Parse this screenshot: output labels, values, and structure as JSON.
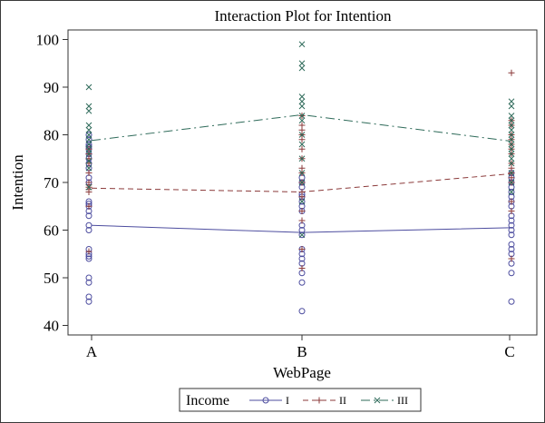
{
  "chart_data": {
    "type": "line",
    "title": "Interaction Plot for Intention",
    "xlabel": "WebPage",
    "ylabel": "Intention",
    "categories": [
      "A",
      "B",
      "C"
    ],
    "ylim": [
      38,
      102
    ],
    "yticks": [
      40,
      50,
      60,
      70,
      80,
      90,
      100
    ],
    "legend_title": "Income",
    "legend_position": "bottom",
    "series": [
      {
        "name": "I",
        "color": "#4d4d9f",
        "marker": "circle",
        "line_style": "solid",
        "means": [
          61,
          59.5,
          60.5
        ],
        "points": [
          [
            45,
            46,
            49,
            50,
            54,
            54.5,
            55,
            56,
            60,
            61,
            63,
            64,
            65,
            65.5,
            66,
            70,
            71,
            73,
            74,
            75,
            76,
            77,
            77.5,
            78,
            79,
            80
          ],
          [
            43,
            49,
            51,
            53,
            54,
            55,
            56,
            59,
            60,
            61,
            64,
            65,
            66,
            67,
            67.5,
            69,
            70,
            71
          ],
          [
            45,
            51,
            53,
            55,
            56,
            57,
            59,
            60,
            61,
            62,
            63,
            65,
            66,
            67,
            68,
            69,
            70,
            71,
            72
          ]
        ]
      },
      {
        "name": "II",
        "color": "#8b3a3a",
        "marker": "plus",
        "line_style": "dash",
        "means": [
          68.8,
          68,
          71.8
        ],
        "points": [
          [
            55.5,
            65,
            68,
            68.5,
            69,
            69.5,
            70,
            72,
            74,
            75,
            76,
            77
          ],
          [
            52,
            56,
            62,
            64,
            67,
            68,
            70,
            72,
            73,
            75,
            77,
            79,
            80,
            81,
            82,
            84
          ],
          [
            54,
            64,
            66,
            70,
            71,
            72,
            73,
            74,
            76,
            77,
            78,
            79,
            80,
            82,
            83,
            93
          ]
        ]
      },
      {
        "name": "III",
        "color": "#2f6b5a",
        "marker": "x",
        "line_style": "dashdot",
        "means": [
          78.8,
          84.2,
          78.7
        ],
        "points": [
          [
            69,
            73,
            74.5,
            76,
            77,
            78,
            79,
            80,
            81,
            82,
            85,
            86,
            90
          ],
          [
            59,
            66,
            70,
            72,
            75,
            78,
            80,
            83,
            84,
            86,
            87,
            88,
            94,
            95,
            99
          ],
          [
            68,
            70,
            72,
            74,
            75,
            76,
            77,
            78,
            79,
            80,
            81,
            82,
            83,
            84,
            86,
            87
          ]
        ]
      }
    ]
  }
}
